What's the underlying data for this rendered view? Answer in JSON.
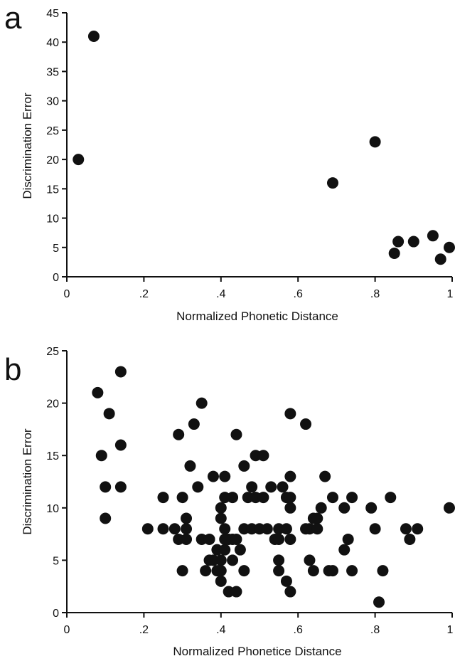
{
  "chart_data": [
    {
      "panel_label": "a",
      "type": "scatter",
      "xlabel": "Normalized Phonetic Distance",
      "ylabel": "Discrimination Error",
      "xlim": [
        0,
        1
      ],
      "ylim": [
        0,
        45
      ],
      "x_ticks": [
        0,
        0.2,
        0.4,
        0.6,
        0.8,
        1
      ],
      "x_tick_labels": [
        "0",
        ".2",
        ".4",
        ".6",
        ".8",
        "1"
      ],
      "y_ticks": [
        0,
        5,
        10,
        15,
        20,
        25,
        30,
        35,
        40,
        45
      ],
      "y_tick_labels": [
        "0",
        "5",
        "10",
        "15",
        "20",
        "25",
        "30",
        "35",
        "40",
        "45"
      ],
      "grid": false,
      "points": [
        {
          "x": 0.03,
          "y": 20
        },
        {
          "x": 0.07,
          "y": 41
        },
        {
          "x": 0.69,
          "y": 16
        },
        {
          "x": 0.8,
          "y": 23
        },
        {
          "x": 0.85,
          "y": 4
        },
        {
          "x": 0.86,
          "y": 6
        },
        {
          "x": 0.9,
          "y": 6
        },
        {
          "x": 0.95,
          "y": 7
        },
        {
          "x": 0.97,
          "y": 3
        },
        {
          "x": 1.0,
          "y": 5
        }
      ]
    },
    {
      "panel_label": "b",
      "type": "scatter",
      "xlabel": "Normalized Phonetice Distance",
      "ylabel": "Discrimination Error",
      "xlim": [
        0,
        1
      ],
      "ylim": [
        0,
        25
      ],
      "x_ticks": [
        0,
        0.2,
        0.4,
        0.6,
        0.8,
        1
      ],
      "x_tick_labels": [
        "0",
        ".2",
        ".4",
        ".6",
        ".8",
        "1"
      ],
      "y_ticks": [
        0,
        5,
        10,
        15,
        20,
        25
      ],
      "y_tick_labels": [
        "0",
        "5",
        "10",
        "15",
        "20",
        "25"
      ],
      "grid": false,
      "points": [
        {
          "x": 0.08,
          "y": 21
        },
        {
          "x": 0.09,
          "y": 15
        },
        {
          "x": 0.1,
          "y": 12
        },
        {
          "x": 0.1,
          "y": 9
        },
        {
          "x": 0.11,
          "y": 19
        },
        {
          "x": 0.14,
          "y": 23
        },
        {
          "x": 0.14,
          "y": 16
        },
        {
          "x": 0.14,
          "y": 12
        },
        {
          "x": 0.21,
          "y": 8
        },
        {
          "x": 0.25,
          "y": 11
        },
        {
          "x": 0.25,
          "y": 8
        },
        {
          "x": 0.28,
          "y": 8
        },
        {
          "x": 0.29,
          "y": 17
        },
        {
          "x": 0.29,
          "y": 7
        },
        {
          "x": 0.3,
          "y": 11
        },
        {
          "x": 0.3,
          "y": 4
        },
        {
          "x": 0.31,
          "y": 9
        },
        {
          "x": 0.31,
          "y": 8
        },
        {
          "x": 0.31,
          "y": 7
        },
        {
          "x": 0.32,
          "y": 14
        },
        {
          "x": 0.33,
          "y": 18
        },
        {
          "x": 0.34,
          "y": 12
        },
        {
          "x": 0.35,
          "y": 20
        },
        {
          "x": 0.35,
          "y": 7
        },
        {
          "x": 0.36,
          "y": 4
        },
        {
          "x": 0.37,
          "y": 5
        },
        {
          "x": 0.37,
          "y": 7
        },
        {
          "x": 0.38,
          "y": 13
        },
        {
          "x": 0.38,
          "y": 5
        },
        {
          "x": 0.39,
          "y": 4
        },
        {
          "x": 0.39,
          "y": 6
        },
        {
          "x": 0.4,
          "y": 10
        },
        {
          "x": 0.4,
          "y": 9
        },
        {
          "x": 0.4,
          "y": 5
        },
        {
          "x": 0.4,
          "y": 4
        },
        {
          "x": 0.4,
          "y": 3
        },
        {
          "x": 0.41,
          "y": 13
        },
        {
          "x": 0.41,
          "y": 11
        },
        {
          "x": 0.41,
          "y": 8
        },
        {
          "x": 0.41,
          "y": 7
        },
        {
          "x": 0.41,
          "y": 6
        },
        {
          "x": 0.42,
          "y": 7
        },
        {
          "x": 0.42,
          "y": 2
        },
        {
          "x": 0.43,
          "y": 5
        },
        {
          "x": 0.43,
          "y": 11
        },
        {
          "x": 0.43,
          "y": 7
        },
        {
          "x": 0.44,
          "y": 17
        },
        {
          "x": 0.44,
          "y": 2
        },
        {
          "x": 0.44,
          "y": 7
        },
        {
          "x": 0.45,
          "y": 6
        },
        {
          "x": 0.46,
          "y": 14
        },
        {
          "x": 0.46,
          "y": 8
        },
        {
          "x": 0.46,
          "y": 4
        },
        {
          "x": 0.47,
          "y": 11
        },
        {
          "x": 0.48,
          "y": 12
        },
        {
          "x": 0.48,
          "y": 8
        },
        {
          "x": 0.49,
          "y": 11
        },
        {
          "x": 0.49,
          "y": 15
        },
        {
          "x": 0.5,
          "y": 8
        },
        {
          "x": 0.51,
          "y": 11
        },
        {
          "x": 0.51,
          "y": 15
        },
        {
          "x": 0.52,
          "y": 8
        },
        {
          "x": 0.53,
          "y": 12
        },
        {
          "x": 0.54,
          "y": 7
        },
        {
          "x": 0.55,
          "y": 8
        },
        {
          "x": 0.55,
          "y": 7
        },
        {
          "x": 0.55,
          "y": 5
        },
        {
          "x": 0.55,
          "y": 4
        },
        {
          "x": 0.56,
          "y": 12
        },
        {
          "x": 0.57,
          "y": 11
        },
        {
          "x": 0.57,
          "y": 8
        },
        {
          "x": 0.57,
          "y": 3
        },
        {
          "x": 0.58,
          "y": 13
        },
        {
          "x": 0.58,
          "y": 11
        },
        {
          "x": 0.58,
          "y": 10
        },
        {
          "x": 0.58,
          "y": 19
        },
        {
          "x": 0.58,
          "y": 7
        },
        {
          "x": 0.58,
          "y": 2
        },
        {
          "x": 0.62,
          "y": 18
        },
        {
          "x": 0.62,
          "y": 8
        },
        {
          "x": 0.63,
          "y": 5
        },
        {
          "x": 0.63,
          "y": 8
        },
        {
          "x": 0.64,
          "y": 4
        },
        {
          "x": 0.64,
          "y": 9
        },
        {
          "x": 0.65,
          "y": 9
        },
        {
          "x": 0.65,
          "y": 8
        },
        {
          "x": 0.66,
          "y": 10
        },
        {
          "x": 0.67,
          "y": 13
        },
        {
          "x": 0.68,
          "y": 4
        },
        {
          "x": 0.69,
          "y": 11
        },
        {
          "x": 0.69,
          "y": 4
        },
        {
          "x": 0.72,
          "y": 10
        },
        {
          "x": 0.72,
          "y": 6
        },
        {
          "x": 0.73,
          "y": 7
        },
        {
          "x": 0.74,
          "y": 11
        },
        {
          "x": 0.74,
          "y": 4
        },
        {
          "x": 0.79,
          "y": 10
        },
        {
          "x": 0.8,
          "y": 8
        },
        {
          "x": 0.81,
          "y": 1
        },
        {
          "x": 0.82,
          "y": 4
        },
        {
          "x": 0.84,
          "y": 11
        },
        {
          "x": 0.88,
          "y": 8
        },
        {
          "x": 0.89,
          "y": 7
        },
        {
          "x": 0.91,
          "y": 8
        },
        {
          "x": 1.0,
          "y": 10
        }
      ]
    }
  ]
}
